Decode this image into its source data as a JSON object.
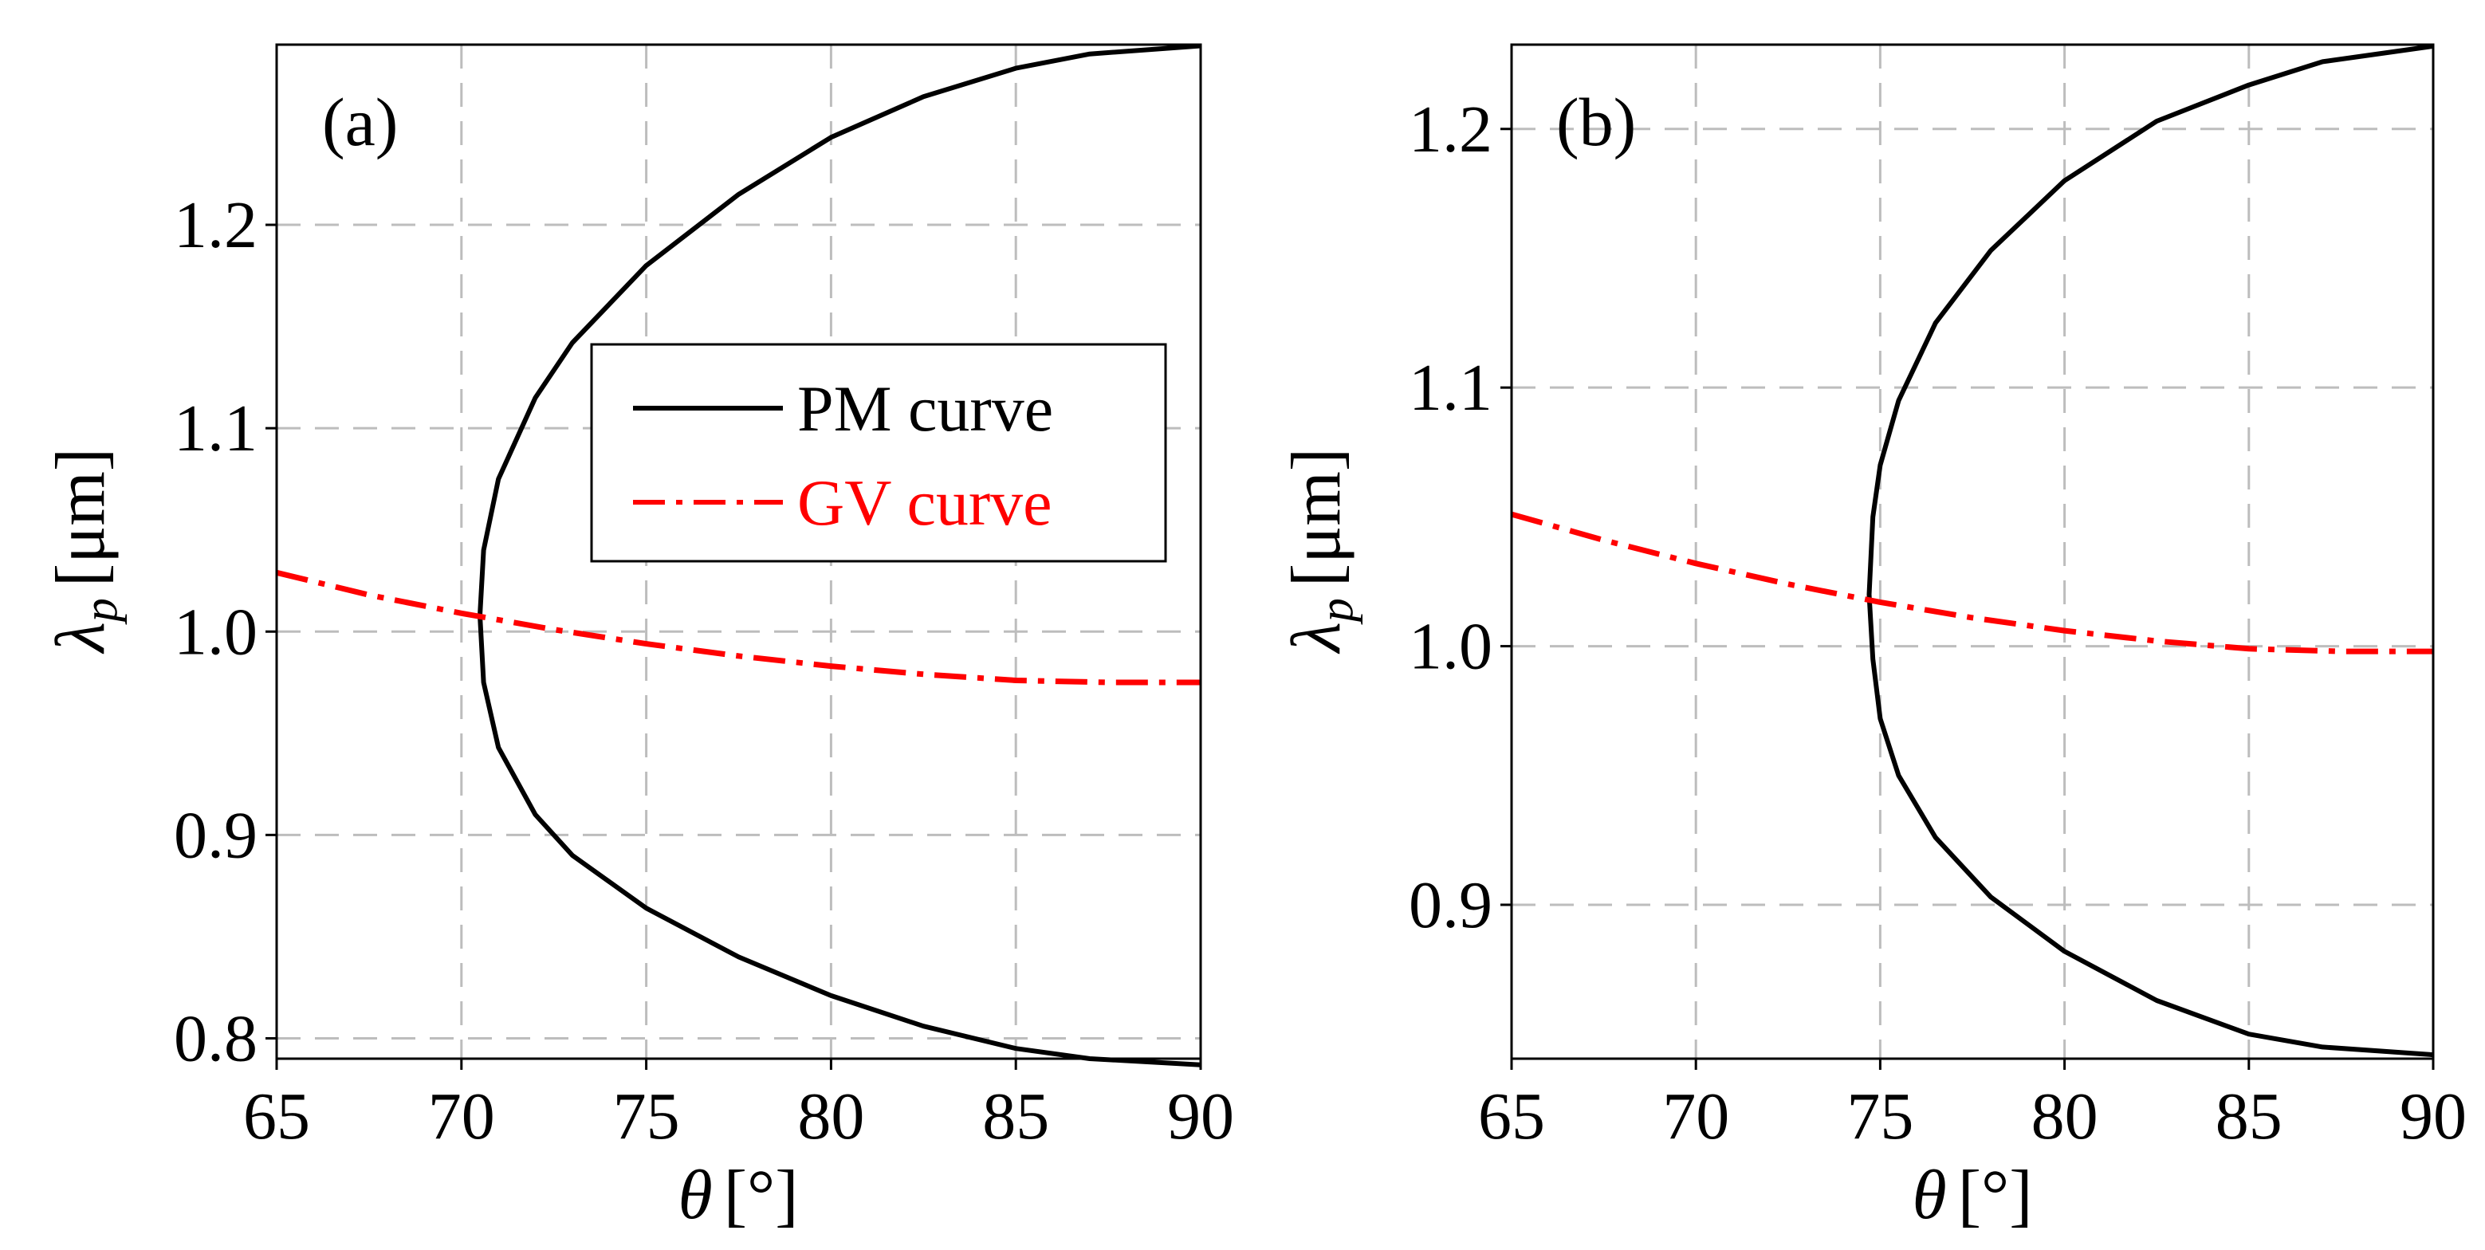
{
  "figure": {
    "legend": {
      "pm_label": "PM curve",
      "gv_label": "GV curve",
      "pm_color": "#000000",
      "gv_color": "#ff0000"
    }
  },
  "chart_data": [
    {
      "type": "line",
      "panel_label": "(a)",
      "xlabel_symbol": "θ",
      "xlabel_unit": "[°]",
      "ylabel_symbol": "λ",
      "ylabel_sub": "p",
      "ylabel_unit": "[μm]",
      "xlim": [
        65,
        90
      ],
      "ylim": [
        0.79,
        1.2886
      ],
      "xticks": [
        65,
        70,
        75,
        80,
        85,
        90
      ],
      "yticks": [
        0.8,
        0.9,
        1.0,
        1.1,
        1.2
      ],
      "ytick_labels": [
        "0.8",
        "0.9",
        "1.0",
        "1.1",
        "1.2"
      ],
      "grid": true,
      "series": [
        {
          "name": "PM curve",
          "color": "#000000",
          "style": "solid",
          "x": [
            90.0,
            87.0,
            85.0,
            82.5,
            80.0,
            77.5,
            75.0,
            73.0,
            72.0,
            71.0,
            70.6,
            70.5,
            70.6,
            71.0,
            72.0,
            73.0,
            75.0,
            77.5,
            80.0,
            82.5,
            85.0,
            87.0,
            90.0
          ],
          "y": [
            0.787,
            0.79,
            0.795,
            0.806,
            0.821,
            0.84,
            0.864,
            0.89,
            0.91,
            0.943,
            0.975,
            1.008,
            1.04,
            1.075,
            1.115,
            1.142,
            1.18,
            1.215,
            1.243,
            1.263,
            1.277,
            1.284,
            1.288
          ]
        },
        {
          "name": "GV curve",
          "color": "#ff0000",
          "style": "dashdot",
          "x": [
            65,
            67.5,
            70,
            72.5,
            75,
            77.5,
            80,
            82.5,
            85,
            87.5,
            90
          ],
          "y": [
            1.029,
            1.018,
            1.009,
            1.001,
            0.994,
            0.988,
            0.983,
            0.979,
            0.976,
            0.975,
            0.975
          ]
        }
      ]
    },
    {
      "type": "line",
      "panel_label": "(b)",
      "xlabel_symbol": "θ",
      "xlabel_unit": "[°]",
      "ylabel_symbol": "λ",
      "ylabel_sub": "p",
      "ylabel_unit": "[μm]",
      "xlim": [
        65,
        90
      ],
      "ylim": [
        0.8405,
        1.2326
      ],
      "xticks": [
        65,
        70,
        75,
        80,
        85,
        90
      ],
      "yticks": [
        0.9,
        1.0,
        1.1,
        1.2
      ],
      "ytick_labels": [
        "0.9",
        "1.0",
        "1.1",
        "1.2"
      ],
      "grid": true,
      "series": [
        {
          "name": "PM curve",
          "color": "#000000",
          "style": "solid",
          "x": [
            90.0,
            87.0,
            85.0,
            82.5,
            80.0,
            78.0,
            76.5,
            75.5,
            75.0,
            74.8,
            74.7,
            74.8,
            75.0,
            75.5,
            76.5,
            78.0,
            80.0,
            82.5,
            85.0,
            87.0,
            90.0
          ],
          "y": [
            0.842,
            0.845,
            0.85,
            0.863,
            0.882,
            0.903,
            0.926,
            0.95,
            0.972,
            0.995,
            1.02,
            1.05,
            1.07,
            1.095,
            1.125,
            1.153,
            1.18,
            1.203,
            1.217,
            1.226,
            1.232
          ]
        },
        {
          "name": "GV curve",
          "color": "#ff0000",
          "style": "dashdot",
          "x": [
            65,
            67.5,
            70,
            72.5,
            75,
            77.5,
            80,
            82.5,
            85,
            87.5,
            90
          ],
          "y": [
            1.051,
            1.041,
            1.032,
            1.024,
            1.017,
            1.011,
            1.006,
            1.002,
            0.999,
            0.998,
            0.998
          ]
        }
      ]
    }
  ]
}
